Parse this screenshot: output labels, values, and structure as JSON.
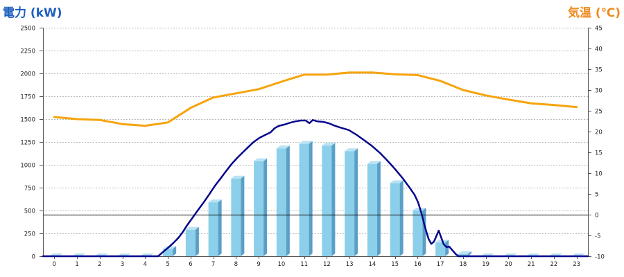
{
  "chart_data": {
    "type": "bar",
    "categories": [
      "0",
      "1",
      "2",
      "3",
      "4",
      "5",
      "6",
      "7",
      "8",
      "9",
      "10",
      "11",
      "12",
      "13",
      "14",
      "15",
      "16",
      "17",
      "18",
      "19",
      "20",
      "21",
      "22",
      "23"
    ],
    "y_left": {
      "label": "電力 (kW)",
      "color": "#1d5fbf",
      "range": [
        0,
        2500
      ],
      "ticks": [
        0,
        250,
        500,
        750,
        1000,
        1250,
        1500,
        1750,
        2000,
        2250,
        2500
      ]
    },
    "y_right": {
      "label": "気温 (℃)",
      "color": "#f08a1d",
      "range": [
        -10,
        45
      ],
      "ticks": [
        -10,
        -5,
        0,
        5,
        10,
        15,
        20,
        25,
        30,
        35,
        40,
        45
      ]
    },
    "grid": true,
    "reference_lines": [
      {
        "axis": "right",
        "value": 0,
        "color": "#000000"
      }
    ],
    "series": [
      {
        "type": "bar",
        "axis": "left",
        "colors": {
          "front": "#8ccfea",
          "side": "#5a9fc6",
          "top": "#b9e3f4"
        },
        "values": [
          0,
          0,
          0,
          0,
          0,
          80,
          290,
          590,
          850,
          1040,
          1180,
          1230,
          1210,
          1150,
          1010,
          800,
          500,
          150,
          25,
          0,
          0,
          0,
          0,
          0
        ]
      },
      {
        "type": "line",
        "axis": "left",
        "color": "#06068c",
        "points": [
          [
            0,
            0
          ],
          [
            5.07,
            0
          ],
          [
            5.28,
            45
          ],
          [
            5.5,
            90
          ],
          [
            5.74,
            145
          ],
          [
            5.98,
            205
          ],
          [
            6.17,
            270
          ],
          [
            6.35,
            340
          ],
          [
            6.6,
            425
          ],
          [
            6.84,
            510
          ],
          [
            7.08,
            590
          ],
          [
            7.33,
            680
          ],
          [
            7.57,
            770
          ],
          [
            7.82,
            850
          ],
          [
            8.06,
            930
          ],
          [
            8.31,
            1010
          ],
          [
            8.55,
            1075
          ],
          [
            8.79,
            1135
          ],
          [
            9.04,
            1195
          ],
          [
            9.28,
            1250
          ],
          [
            9.53,
            1295
          ],
          [
            9.77,
            1325
          ],
          [
            10.02,
            1355
          ],
          [
            10.2,
            1400
          ],
          [
            10.38,
            1425
          ],
          [
            10.63,
            1440
          ],
          [
            10.87,
            1460
          ],
          [
            11.11,
            1475
          ],
          [
            11.36,
            1485
          ],
          [
            11.57,
            1485
          ],
          [
            11.73,
            1455
          ],
          [
            11.88,
            1490
          ],
          [
            12.09,
            1475
          ],
          [
            12.34,
            1470
          ],
          [
            12.58,
            1455
          ],
          [
            12.82,
            1430
          ],
          [
            13.07,
            1410
          ],
          [
            13.47,
            1380
          ],
          [
            13.83,
            1325
          ],
          [
            14.14,
            1270
          ],
          [
            14.47,
            1210
          ],
          [
            14.84,
            1130
          ],
          [
            15.15,
            1050
          ],
          [
            15.48,
            960
          ],
          [
            15.82,
            860
          ],
          [
            16.12,
            760
          ],
          [
            16.37,
            670
          ],
          [
            16.52,
            590
          ],
          [
            16.67,
            470
          ],
          [
            16.82,
            320
          ],
          [
            16.98,
            190
          ],
          [
            17.1,
            135
          ],
          [
            17.22,
            160
          ],
          [
            17.34,
            230
          ],
          [
            17.43,
            280
          ],
          [
            17.53,
            210
          ],
          [
            17.65,
            130
          ],
          [
            17.77,
            100
          ],
          [
            17.89,
            105
          ],
          [
            18.05,
            60
          ],
          [
            18.17,
            25
          ],
          [
            18.29,
            0
          ],
          [
            24,
            0
          ]
        ]
      },
      {
        "type": "line",
        "axis": "right",
        "color": "#f7a30c",
        "values": [
          23.5,
          23.0,
          22.8,
          21.8,
          21.4,
          22.2,
          25.7,
          28.2,
          29.2,
          30.2,
          32.0,
          33.7,
          33.7,
          34.2,
          34.2,
          33.8,
          33.6,
          32.2,
          30.0,
          28.7,
          27.7,
          26.8,
          26.4,
          25.9
        ]
      }
    ]
  }
}
